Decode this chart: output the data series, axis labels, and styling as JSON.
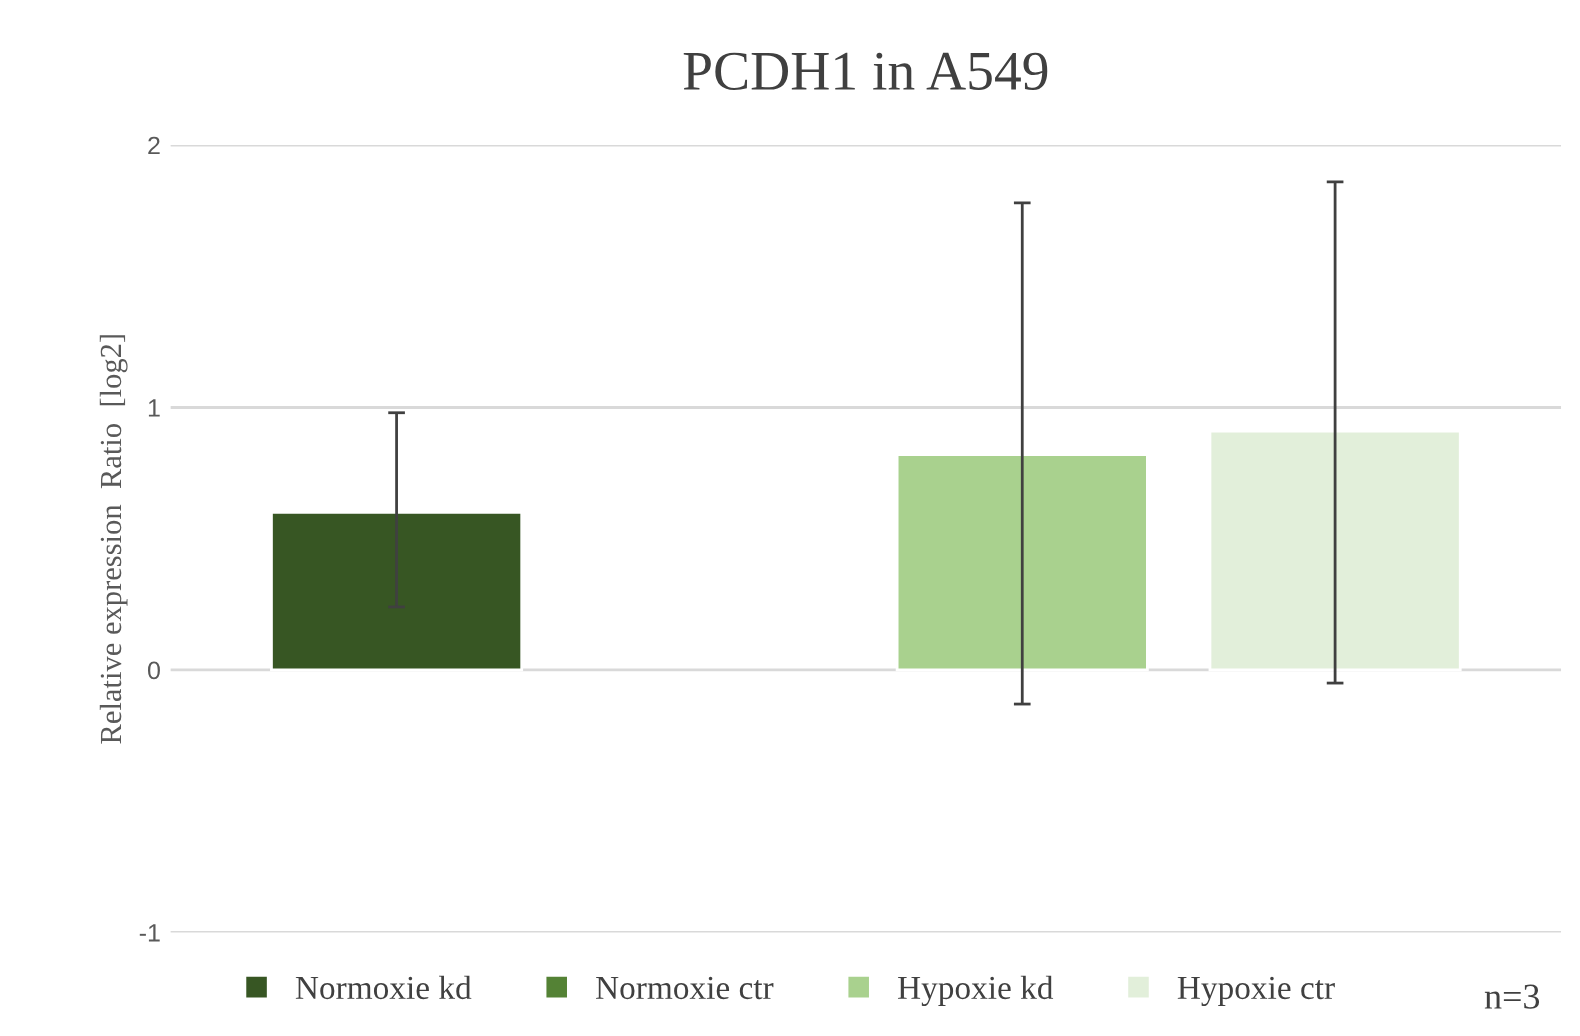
{
  "chart_data": {
    "type": "bar",
    "title": "PCDH1 in A549",
    "ylabel": "Relative expression  Ratio  [log2]",
    "categories": [
      null
    ],
    "series": [
      {
        "name": "Normoxie kd",
        "color": "#375623",
        "values": [
          0.6
        ],
        "errors": [
          [
            0.24,
            0.98
          ]
        ]
      },
      {
        "name": "Normoxie ctr",
        "color": "#548235",
        "values": [
          null
        ],
        "errors": [
          null
        ]
      },
      {
        "name": "Hypoxie kd",
        "color": "#a9d18e",
        "values": [
          0.82
        ],
        "errors": [
          [
            -0.13,
            1.78
          ]
        ]
      },
      {
        "name": "Hypoxie ctr",
        "color": "#e2efda",
        "values": [
          0.91
        ],
        "errors": [
          [
            -0.05,
            1.86
          ]
        ]
      }
    ],
    "ylim": [
      -1,
      2.0
    ],
    "yticks": [
      {
        "value": -1,
        "label": "-1"
      },
      0,
      1,
      2
    ],
    "grid": "y",
    "legend": "bottom",
    "annotations": [
      "n=3"
    ]
  }
}
